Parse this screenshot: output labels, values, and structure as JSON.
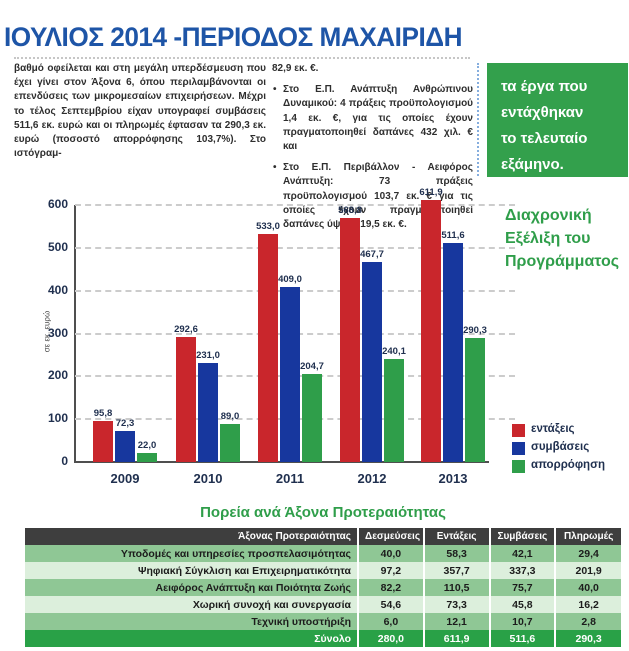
{
  "page": {
    "title": "ΙΟΥΛΙΟΣ 2014 -ΠΕΡΙΟΔΟΣ ΜΑΧΑΙΡΙΔΗ"
  },
  "article": {
    "col1_text": "βαθμό οφείλεται και στη μεγάλη υπερδέσμευση που έχει γίνει στον Άξονα 6, όπου περιλαμβάνονται οι επενδύσεις των μικρομεσαίων επιχειρήσεων. Μέχρι το τέλος Σεπτεμβρίου είχαν υπογραφεί συμβάσεις 511,6 εκ. ευρώ και οι πληρωμές έφτασαν τα 290,3 εκ. ευρώ (ποσοστό απορρόφησης 103,7%). Στο ιστόγραμ-",
    "col2_intro": "82,9 εκ. €.",
    "col2_bullets": [
      "Στο Ε.Π. Ανάπτυξη Ανθρώπινου Δυναμικού: 4 πράξεις προϋπολογισμού 1,4 εκ. €, για τις οποίες έχουν πραγματοποιηθεί δαπάνες 432 χιλ. € και",
      "Στο Ε.Π. Περιβάλλον - Αειφόρος Ανάπτυξη: 73 πράξεις προϋπολογισμού 103,7 εκ. € για τις οποίες έχουν πραγματοποιηθεί δαπάνες ύψους 19,5 εκ. €."
    ],
    "callout_lines": [
      "τα έργα που",
      "εντάχθηκαν",
      "το τελευταίο",
      "εξάμηνο."
    ]
  },
  "chart": {
    "heading_lines": [
      "Διαχρονική",
      "Εξέλιξη του",
      "Προγράμματος"
    ]
  },
  "chart_data": {
    "type": "bar",
    "title": "Διαχρονική Εξέλιξη του Προγράμματος",
    "ylabel": "σε εκ. ευρώ",
    "categories": [
      "2009",
      "2010",
      "2011",
      "2012",
      "2013"
    ],
    "series": [
      {
        "name": "εντάξεις",
        "color": "#c9262c",
        "values": [
          95.8,
          292.6,
          533.0,
          568.8,
          611.9
        ],
        "labels": [
          "95,8",
          "292,6",
          "533,0",
          "568,8",
          "611,9"
        ]
      },
      {
        "name": "συμβάσεις",
        "color": "#17379e",
        "values": [
          72.3,
          231.0,
          409.0,
          467.7,
          511.6
        ],
        "labels": [
          "72,3",
          "231,0",
          "409,0",
          "467,7",
          "511,6"
        ]
      },
      {
        "name": "απορρόφηση",
        "color": "#2f9e4a",
        "values": [
          22.0,
          89.0,
          204.7,
          240.1,
          290.3
        ],
        "labels": [
          "22,0",
          "89,0",
          "204,7",
          "240,1",
          "290,3"
        ]
      }
    ],
    "ylim": [
      0,
      600
    ],
    "yticks": [
      0,
      100,
      200,
      300,
      400,
      500,
      600
    ],
    "grid": "dashed horizontal",
    "legend_position": "right-bottom"
  },
  "table": {
    "title": "Πορεία ανά Άξονα Προτεραιότητας",
    "headers": [
      "Άξονας Προτεραιότητας",
      "Δεσμεύσεις",
      "Εντάξεις",
      "Συμβάσεις",
      "Πληρωμές"
    ],
    "rows": [
      [
        "Υποδομές και υπηρεσίες προσπελασιμότητας",
        "40,0",
        "58,3",
        "42,1",
        "29,4"
      ],
      [
        "Ψηφιακή Σύγκλιση και Επιχειρηματικότητα",
        "97,2",
        "357,7",
        "337,3",
        "201,9"
      ],
      [
        "Αειφόρος Ανάπτυξη και Ποιότητα Ζωής",
        "82,2",
        "110,5",
        "75,7",
        "40,0"
      ],
      [
        "Χωρική συνοχή και συνεργασία",
        "54,6",
        "73,3",
        "45,8",
        "16,2"
      ],
      [
        "Τεχνική υποστήριξη",
        "6,0",
        "12,1",
        "10,7",
        "2,8"
      ]
    ],
    "total_row": [
      "Σύνολο",
      "280,0",
      "611,9",
      "511,6",
      "290,3"
    ]
  },
  "colors": {
    "headline_blue": "#1e55a7",
    "heading_green": "#2f9e4a",
    "callout_green": "#33a04c",
    "table_header": "#3e3e3e",
    "row_medium": "#8fc795",
    "row_light": "#dcefdc",
    "row_total": "#29a147",
    "axis_gray": "#4f4f4f",
    "grid_gray": "#cccccc",
    "label_navy": "#20304f"
  }
}
